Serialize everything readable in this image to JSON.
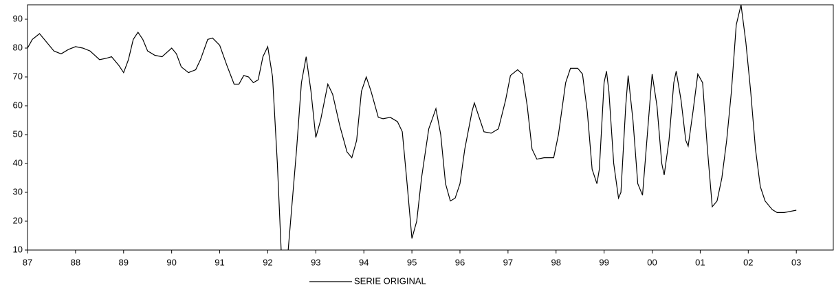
{
  "chart_data": {
    "type": "line",
    "x": [
      1987.0,
      1987.1,
      1987.25,
      1987.4,
      1987.55,
      1987.7,
      1987.85,
      1988.0,
      1988.15,
      1988.3,
      1988.5,
      1988.65,
      1988.75,
      1988.9,
      1989.0,
      1989.1,
      1989.2,
      1989.3,
      1989.4,
      1989.5,
      1989.65,
      1989.8,
      1990.0,
      1990.1,
      1990.2,
      1990.35,
      1990.5,
      1990.6,
      1990.75,
      1990.85,
      1991.0,
      1991.15,
      1991.3,
      1991.4,
      1991.5,
      1991.6,
      1991.7,
      1991.8,
      1991.9,
      1992.0,
      1992.1,
      1992.2,
      1992.3,
      1992.4,
      1992.5,
      1992.6,
      1992.7,
      1992.8,
      1992.9,
      1993.0,
      1993.1,
      1993.25,
      1993.35,
      1993.5,
      1993.65,
      1993.75,
      1993.85,
      1993.95,
      1994.05,
      1994.15,
      1994.3,
      1994.4,
      1994.55,
      1994.7,
      1994.8,
      1994.9,
      1995.0,
      1995.1,
      1995.2,
      1995.35,
      1995.5,
      1995.6,
      1995.7,
      1995.8,
      1995.9,
      1996.0,
      1996.1,
      1996.25,
      1996.3,
      1996.4,
      1996.5,
      1996.65,
      1996.8,
      1996.95,
      1997.05,
      1997.2,
      1997.3,
      1997.4,
      1997.5,
      1997.6,
      1997.75,
      1997.85,
      1997.95,
      1998.05,
      1998.2,
      1998.3,
      1998.45,
      1998.55,
      1998.65,
      1998.75,
      1998.85,
      1998.9,
      1999.0,
      1999.05,
      1999.1,
      1999.2,
      1999.3,
      1999.35,
      1999.45,
      1999.5,
      1999.6,
      1999.7,
      1999.8,
      1999.9,
      2000.0,
      2000.1,
      2000.2,
      2000.25,
      2000.35,
      2000.45,
      2000.5,
      2000.6,
      2000.7,
      2000.75,
      2000.85,
      2000.95,
      2001.05,
      2001.15,
      2001.25,
      2001.35,
      2001.45,
      2001.55,
      2001.65,
      2001.75,
      2001.85,
      2001.95,
      2002.05,
      2002.15,
      2002.25,
      2002.35,
      2002.5,
      2002.6,
      2002.75,
      2003.0
    ],
    "series": [
      {
        "name": "SERIE ORIGINAL",
        "color": "#000000",
        "values": [
          80,
          83,
          85,
          82,
          79,
          78,
          79.5,
          80.5,
          80,
          79,
          76,
          76.5,
          77,
          74,
          71.5,
          76,
          83,
          85.5,
          83,
          79,
          77.5,
          77,
          80,
          78,
          73.5,
          71.5,
          72.5,
          76,
          83,
          83.5,
          81,
          74,
          67.5,
          67.5,
          70.5,
          70,
          68,
          69,
          77,
          80.5,
          70,
          40,
          2,
          5,
          25,
          45,
          68,
          77,
          65,
          49,
          55,
          67.5,
          64,
          53,
          44,
          42,
          48,
          65,
          70,
          65,
          56,
          55.5,
          56,
          54.5,
          51,
          33,
          14,
          20,
          35,
          52,
          59,
          50,
          33,
          27,
          28,
          33,
          45,
          58,
          61,
          56,
          51,
          50.5,
          52,
          62,
          70.5,
          72.5,
          71,
          60,
          45,
          41.5,
          42,
          42,
          42,
          50,
          68,
          73,
          73,
          71,
          58,
          38,
          33,
          38,
          68,
          72,
          65,
          40,
          28,
          30,
          60,
          70.5,
          55,
          33,
          29,
          50,
          71,
          60,
          40,
          36,
          48,
          68,
          72,
          62,
          48,
          46,
          58,
          71,
          68,
          45,
          25,
          27,
          35,
          48,
          65,
          88,
          95,
          82,
          65,
          45,
          32,
          27,
          24,
          23,
          23,
          23.8
        ]
      }
    ],
    "xlim": [
      1987,
      2003.77
    ],
    "ylim": [
      10,
      95
    ],
    "xticks": [
      {
        "value": 1987,
        "label": "87"
      },
      {
        "value": 1988,
        "label": "88"
      },
      {
        "value": 1989,
        "label": "89"
      },
      {
        "value": 1990,
        "label": "90"
      },
      {
        "value": 1991,
        "label": "91"
      },
      {
        "value": 1992,
        "label": "92"
      },
      {
        "value": 1993,
        "label": "93"
      },
      {
        "value": 1994,
        "label": "94"
      },
      {
        "value": 1995,
        "label": "95"
      },
      {
        "value": 1996,
        "label": "96"
      },
      {
        "value": 1997,
        "label": "97"
      },
      {
        "value": 1998,
        "label": "98"
      },
      {
        "value": 1999,
        "label": "99"
      },
      {
        "value": 2000,
        "label": "00"
      },
      {
        "value": 2001,
        "label": "01"
      },
      {
        "value": 2002,
        "label": "02"
      },
      {
        "value": 2003,
        "label": "03"
      }
    ],
    "yticks": [
      10,
      20,
      30,
      40,
      50,
      60,
      70,
      80,
      90
    ]
  }
}
